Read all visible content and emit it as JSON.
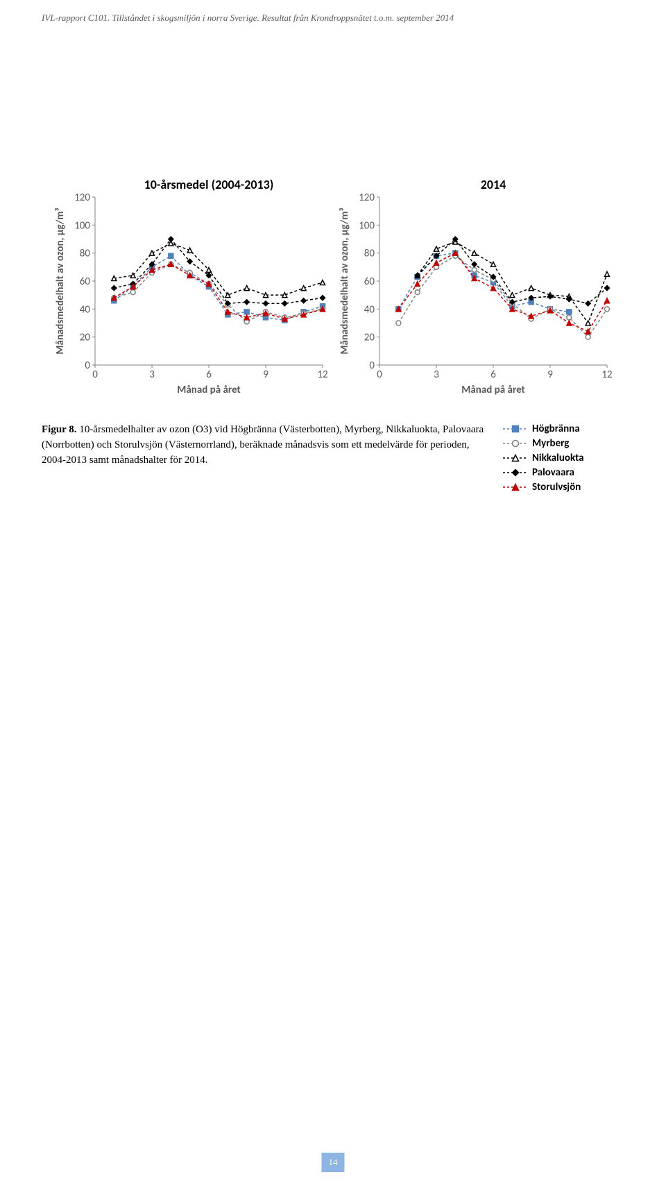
{
  "header": "IVL-rapport C101. Tillståndet i skogsmiljön i norra Sverige. Resultat från Krondroppsnätet t.o.m. september 2014",
  "page_number": "14",
  "caption": {
    "label": "Figur 8.",
    "text": "10-årsmedelhalter av ozon (O3) vid Högbränna (Västerbotten), Myrberg, Nikkaluokta, Palovaara (Norrbotten) och Storulvsjön (Västernorrland), beräknade månadsvis som ett medelvärde för perioden, 2004-2013 samt månadshalter för 2014."
  },
  "legend": {
    "items": [
      {
        "name": "Högbränna",
        "marker": "square",
        "color": "#4f81bd",
        "fill": "#4f81bd"
      },
      {
        "name": "Myrberg",
        "marker": "circle",
        "color": "#808080",
        "fill": "#ffffff"
      },
      {
        "name": "Nikkaluokta",
        "marker": "triangle-open",
        "color": "#000000",
        "fill": "#ffffff"
      },
      {
        "name": "Palovaara",
        "marker": "diamond",
        "color": "#000000",
        "fill": "#000000"
      },
      {
        "name": "Storulvsjön",
        "marker": "triangle",
        "color": "#c00000",
        "fill": "#c00000"
      }
    ]
  },
  "chart": {
    "type": "scatter-line",
    "y_axis_label": "Månadsmedelhalt av ozon, µg/m³",
    "x_axis_label": "Månad på året",
    "xlim": [
      0,
      12
    ],
    "ylim": [
      0,
      120
    ],
    "xticks": [
      0,
      3,
      6,
      9,
      12
    ],
    "yticks": [
      0,
      20,
      40,
      60,
      80,
      100,
      120
    ],
    "line_dash": "4,3",
    "line_width": 1.5,
    "marker_size": 7,
    "bg": "#ffffff",
    "axis_color": "#808080",
    "tick_label_color": "#595959",
    "title_fontsize": 18,
    "label_fontsize": 15,
    "tick_fontsize": 15
  },
  "left_chart": {
    "title": "10-årsmedel (2004-2013)",
    "months": [
      1,
      2,
      3,
      4,
      5,
      6,
      7,
      8,
      9,
      10,
      11,
      12
    ],
    "series": {
      "hogbranna": [
        46,
        56,
        70,
        78,
        64,
        56,
        36,
        38,
        34,
        32,
        38,
        42
      ],
      "myrberg": [
        48,
        52,
        66,
        72,
        66,
        58,
        43,
        31,
        38,
        34,
        37,
        40
      ],
      "nikkaluokta": [
        62,
        64,
        80,
        87,
        82,
        68,
        50,
        55,
        50,
        50,
        55,
        59
      ],
      "palovaara": [
        55,
        58,
        72,
        90,
        74,
        64,
        44,
        45,
        44,
        44,
        46,
        48
      ],
      "storulvsjon": [
        48,
        56,
        68,
        72,
        64,
        58,
        38,
        34,
        37,
        33,
        36,
        40
      ]
    }
  },
  "right_chart": {
    "title": "2014",
    "months": [
      1,
      2,
      3,
      4,
      5,
      6,
      7,
      8,
      9,
      10,
      11,
      12
    ],
    "series": {
      "hogbranna": [
        40,
        63,
        78,
        80,
        64,
        59,
        42,
        45,
        40,
        38,
        null,
        null
      ],
      "myrberg": [
        30,
        52,
        70,
        78,
        68,
        61,
        44,
        33,
        40,
        34,
        20,
        40
      ],
      "nikkaluokta": [
        null,
        64,
        83,
        88,
        80,
        72,
        50,
        55,
        50,
        49,
        30,
        65
      ],
      "palovaara": [
        null,
        64,
        78,
        90,
        72,
        63,
        45,
        48,
        49,
        47,
        44,
        55
      ],
      "storulvsjon": [
        40,
        58,
        73,
        80,
        62,
        55,
        40,
        35,
        39,
        30,
        24,
        46
      ]
    }
  }
}
